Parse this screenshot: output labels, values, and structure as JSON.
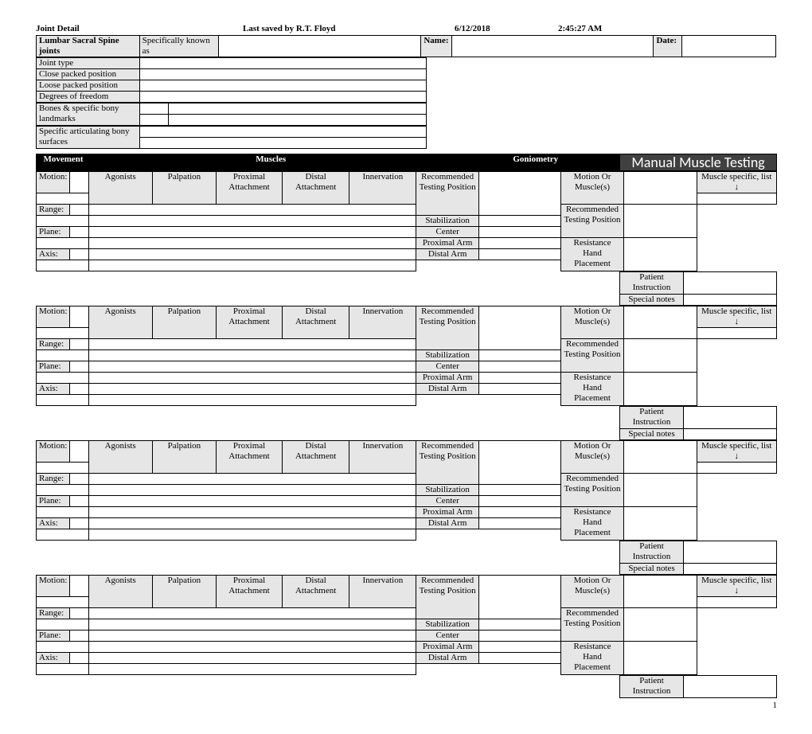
{
  "header": {
    "title": "Joint Detail",
    "savedBy": "Last saved by R.T. Floyd",
    "date": "6/12/2018",
    "time": "2:45:27 AM"
  },
  "jointFields": {
    "jointName": "Lumbar Sacral Spine joints",
    "specifically": "Specifically known as",
    "nameLabel": "Name:",
    "dateLabel": "Date:",
    "jointType": "Joint type",
    "closePacked": "Close packed position",
    "loosePacked": "Loose packed position",
    "dof": "Degrees of freedom",
    "bones": "Bones & specific bony landmarks",
    "articulating": "Specific articulating bony surfaces"
  },
  "sectionHeaders": {
    "movement": "Movement",
    "muscles": "Muscles",
    "goniometry": "Goniometry",
    "mmt": "Manual Muscle Testing"
  },
  "cols": {
    "agonists": "Agonists",
    "palpation": "Palpation",
    "proximal": "Proximal Attachment",
    "distal": "Distal Attachment",
    "innervation": "Innervation"
  },
  "moveRows": {
    "motion": "Motion:",
    "range": "Range:",
    "plane": "Plane:",
    "axis": "Axis:"
  },
  "gonio": {
    "recTesting": "Recommended Testing Position",
    "stabilization": "Stabilization",
    "center": "Center",
    "proximalArm": "Proximal Arm",
    "distalArm": "Distal Arm"
  },
  "mmt": {
    "motionOr": "Motion Or Muscle(s)",
    "muscleList": "Muscle specific, list ↓",
    "recTesting": "Recommended Testing Position",
    "resistance": "Resistance Hand Placement",
    "patient": "Patient Instruction",
    "special": "Special notes"
  },
  "pageNumber": "1"
}
